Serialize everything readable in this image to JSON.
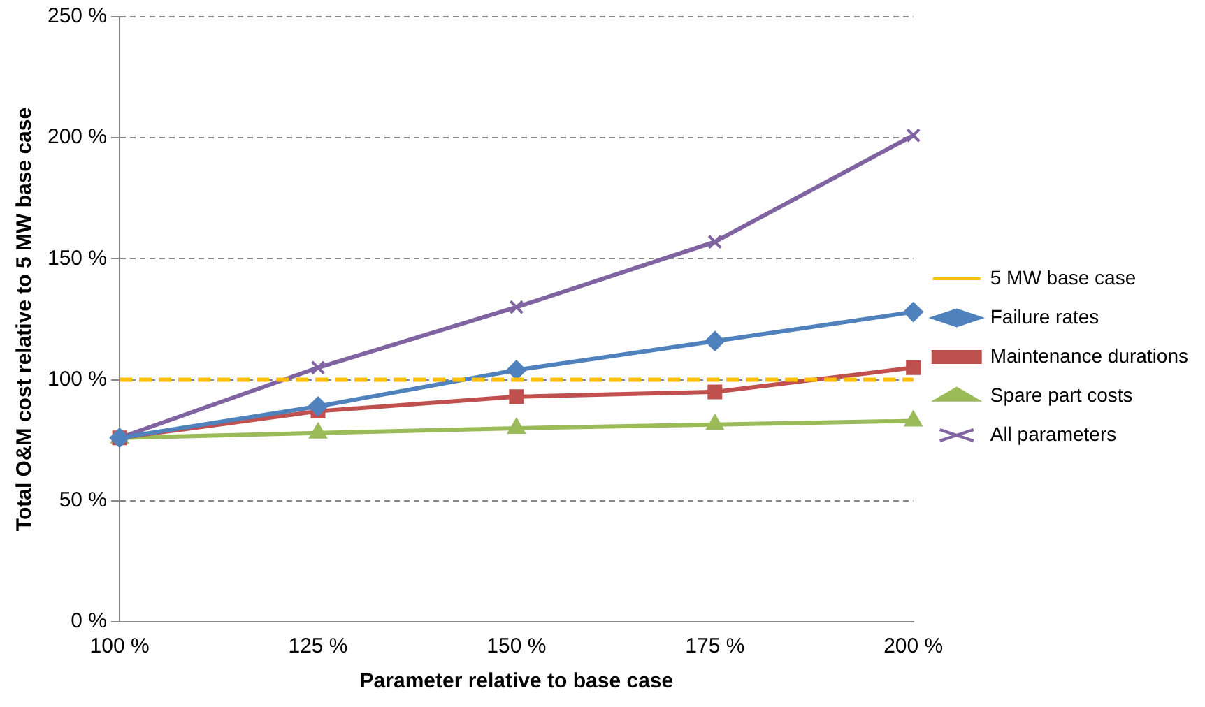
{
  "chart_data": {
    "type": "line",
    "xlabel": "Parameter relative to base case",
    "ylabel": "Total O&M cost relative to 5 MW base case",
    "categories": [
      "100 %",
      "125 %",
      "150 %",
      "175 %",
      "200 %"
    ],
    "series": [
      {
        "name": "5 MW base case",
        "color": "#ffc000",
        "values": [
          100,
          100,
          100,
          100,
          100
        ],
        "line_style": "dashed",
        "marker": "none"
      },
      {
        "name": "Failure rates",
        "color": "#4f81bd",
        "values": [
          76,
          89,
          104,
          116,
          128
        ],
        "marker": "diamond"
      },
      {
        "name": "Maintenance durations",
        "color": "#c0504d",
        "values": [
          76,
          87,
          93,
          95,
          105
        ],
        "marker": "square"
      },
      {
        "name": "Spare part costs",
        "color": "#9bbb59",
        "values": [
          76,
          78,
          80,
          81.5,
          83
        ],
        "marker": "triangle"
      },
      {
        "name": "All parameters",
        "color": "#8064a2",
        "values": [
          76,
          105,
          130,
          157,
          201
        ],
        "marker": "cross"
      }
    ],
    "ylim": [
      0,
      250
    ],
    "yticks": [
      {
        "value": 0,
        "label": "0 %"
      },
      {
        "value": 50,
        "label": "50 %"
      },
      {
        "value": 100,
        "label": "100 %"
      },
      {
        "value": 150,
        "label": "150 %"
      },
      {
        "value": 200,
        "label": "200 %"
      },
      {
        "value": 250,
        "label": "250 %"
      }
    ],
    "grid": "y",
    "legend": "right"
  }
}
